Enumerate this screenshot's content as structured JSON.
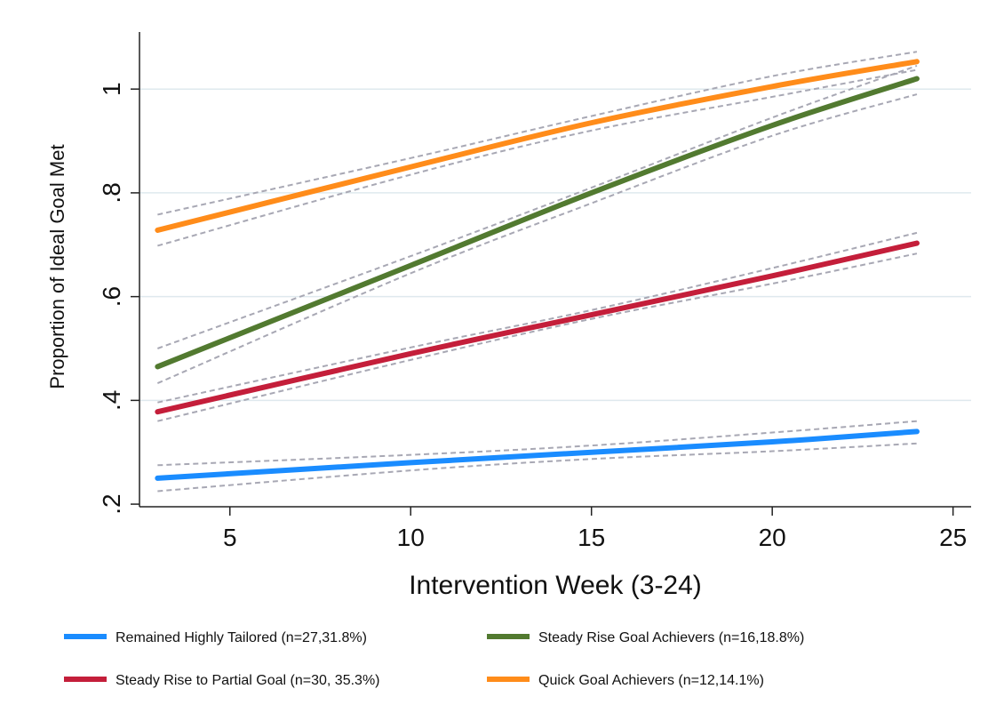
{
  "chart_data": {
    "type": "line",
    "title": "",
    "xlabel": "Intervention Week (3-24)",
    "ylabel": "Proportion of Ideal Goal Met",
    "xlim": [
      2.5,
      25.5
    ],
    "ylim": [
      0.195,
      1.11
    ],
    "xticks": [
      5,
      10,
      15,
      20,
      25
    ],
    "xtick_labels": [
      "5",
      "10",
      "15",
      "20",
      "25"
    ],
    "yticks": [
      0.2,
      0.4,
      0.6,
      0.8,
      1.0
    ],
    "ytick_labels": [
      ".2",
      ".4",
      ".6",
      ".8",
      "1"
    ],
    "grid": "horizontal",
    "legend_position": "bottom",
    "x": [
      3,
      10,
      15,
      20,
      24
    ],
    "series": [
      {
        "name": "Remained Highly Tailored (n=27,31.8%)",
        "color": "#1a8cff",
        "values": [
          0.25,
          0.28,
          0.3,
          0.32,
          0.34
        ],
        "ci_lower": [
          0.225,
          0.265,
          0.287,
          0.302,
          0.317
        ],
        "ci_upper": [
          0.275,
          0.295,
          0.313,
          0.338,
          0.36
        ]
      },
      {
        "name": "Steady Rise Goal Achievers (n=16,18.8%)",
        "color": "#527a30",
        "values": [
          0.465,
          0.66,
          0.8,
          0.93,
          1.02
        ],
        "ci_lower": [
          0.433,
          0.645,
          0.78,
          0.91,
          0.99
        ],
        "ci_upper": [
          0.5,
          0.678,
          0.81,
          0.945,
          1.045
        ]
      },
      {
        "name": "Steady Rise to Partial Goal (n=30, 35.3%)",
        "color": "#c41e3a",
        "values": [
          0.378,
          0.49,
          0.565,
          0.64,
          0.703
        ],
        "ci_lower": [
          0.36,
          0.478,
          0.557,
          0.625,
          0.683
        ],
        "ci_upper": [
          0.396,
          0.502,
          0.574,
          0.655,
          0.723
        ]
      },
      {
        "name": "Quick Goal Achievers (n=12,14.1%)",
        "color": "#ff8c1a",
        "values": [
          0.728,
          0.85,
          0.935,
          1.005,
          1.053
        ],
        "ci_lower": [
          0.698,
          0.835,
          0.92,
          0.985,
          1.037
        ],
        "ci_upper": [
          0.758,
          0.867,
          0.948,
          1.025,
          1.072
        ]
      }
    ],
    "legend_order": [
      0,
      1,
      2,
      3
    ]
  }
}
